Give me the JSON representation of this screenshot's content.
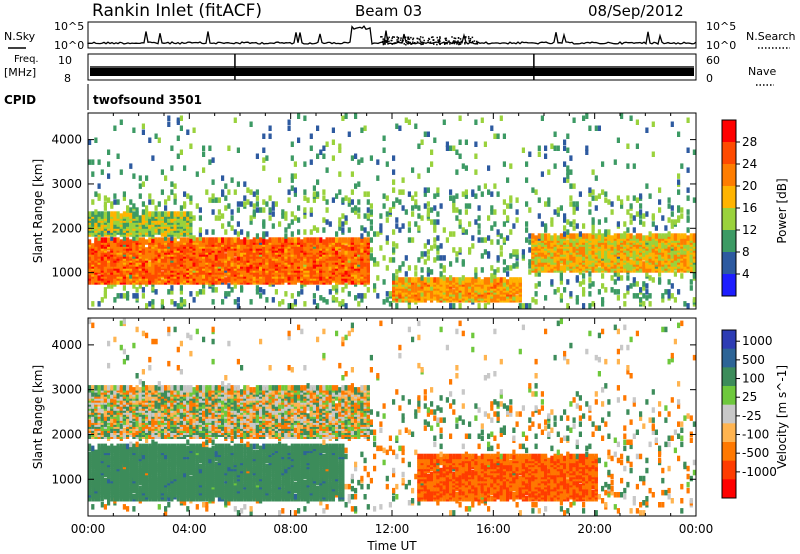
{
  "header": {
    "title": "Rankin Inlet (fitACF)",
    "beam": "Beam 03",
    "date": "08/Sep/2012"
  },
  "strip": {
    "nsky_label": "N.Sky",
    "nsearch_label": "N.Search",
    "freq_label_1": "Freq.",
    "freq_label_2": "[MHz]",
    "nave_label": "Nave",
    "cpid_label": "CPID",
    "cpid_value": "twofsound 3501",
    "nsky_ticks": [
      "10^5",
      "10^0"
    ],
    "nsearch_ticks": [
      "10^5",
      "10^0"
    ],
    "freq_ticks": [
      "10",
      "8"
    ],
    "nave_ticks": [
      "60",
      "0"
    ]
  },
  "chart_data": [
    {
      "type": "heatmap",
      "panel": "power",
      "ylabel": "Slant Range [km]",
      "xlabel": "",
      "x_ticks": [
        "00:00",
        "04:00",
        "08:00",
        "12:00",
        "16:00",
        "20:00",
        "00:00"
      ],
      "y_ticks": [
        1000,
        2000,
        3000,
        4000
      ],
      "ylim": [
        180,
        4600
      ],
      "xlim_hours": [
        0,
        24
      ],
      "colorbar_label": "Power [dB]",
      "colorbar_ticks": [
        "28",
        "24",
        "20",
        "16",
        "12",
        "8",
        "4"
      ],
      "colorbar_colors": [
        "#ff0000",
        "#ff4a00",
        "#ff7d00",
        "#ffb400",
        "#9ad23c",
        "#3c9a64",
        "#2d5aa0",
        "#1e1eff"
      ],
      "features": [
        {
          "region": "main F-region echo band",
          "hours": [
            0,
            11
          ],
          "range_km": [
            700,
            1700
          ],
          "power_db": 24
        },
        {
          "region": "upper band",
          "hours": [
            0,
            4
          ],
          "range_km": [
            1800,
            2300
          ],
          "power_db": 14
        },
        {
          "region": "low range band",
          "hours": [
            12,
            17
          ],
          "range_km": [
            300,
            800
          ],
          "power_db": 20
        },
        {
          "region": "evening band",
          "hours": [
            17.5,
            24
          ],
          "range_km": [
            1000,
            1800
          ],
          "power_db": 18
        }
      ]
    },
    {
      "type": "heatmap",
      "panel": "velocity",
      "ylabel": "Slant Range [km]",
      "xlabel": "Time UT",
      "x_ticks": [
        "00:00",
        "04:00",
        "08:00",
        "12:00",
        "16:00",
        "20:00",
        "00:00"
      ],
      "y_ticks": [
        1000,
        2000,
        3000,
        4000
      ],
      "ylim": [
        180,
        4600
      ],
      "xlim_hours": [
        0,
        24
      ],
      "colorbar_label": "Velocity [m s^-1]",
      "colorbar_ticks": [
        "1000",
        "500",
        "100",
        "25",
        "-25",
        "-100",
        "-500",
        "-1000"
      ],
      "colorbar_colors": [
        "#2d3cb4",
        "#2d6496",
        "#3c8c5a",
        "#6ec83c",
        "#c8c8c8",
        "#ffb450",
        "#ff7800",
        "#ff3c00",
        "#ff0000"
      ],
      "features": [
        {
          "region": "positive velocity band",
          "hours": [
            0,
            10
          ],
          "range_km": [
            500,
            1700
          ],
          "velocity": 200
        },
        {
          "region": "ground scatter",
          "hours": [
            0,
            11
          ],
          "range_km": [
            1900,
            3000
          ],
          "velocity": 0
        },
        {
          "region": "negative velocity band",
          "hours": [
            13,
            20
          ],
          "range_km": [
            500,
            1500
          ],
          "velocity": -300
        }
      ]
    }
  ]
}
